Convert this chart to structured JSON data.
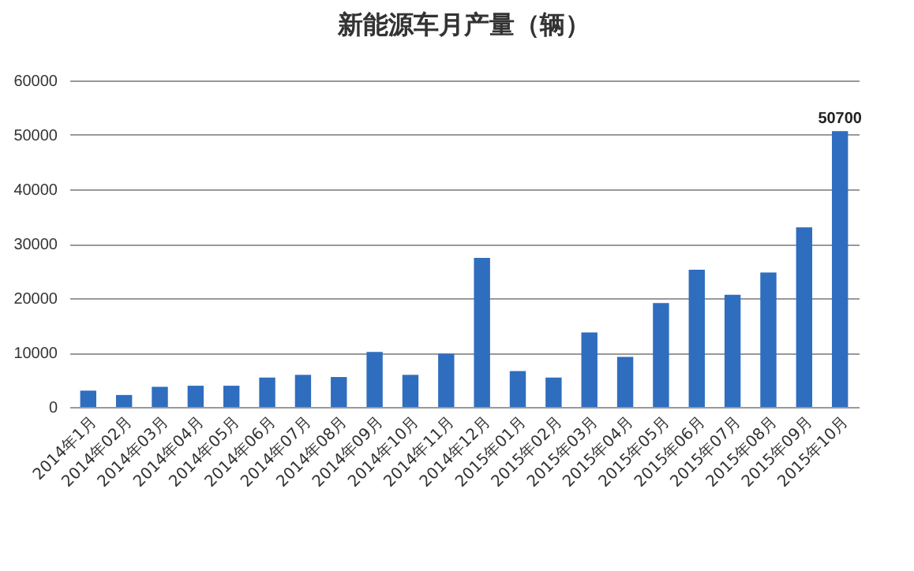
{
  "chart_data": {
    "type": "bar",
    "title": "新能源车月产量（辆）",
    "categories": [
      "2014年1月",
      "2014年02月",
      "2014年03月",
      "2014年04月",
      "2014年05月",
      "2014年06月",
      "2014年07月",
      "2014年08月",
      "2014年09月",
      "2014年10月",
      "2014年11月",
      "2014年12月",
      "2015年01月",
      "2015年02月",
      "2015年03月",
      "2015年04月",
      "2015年05月",
      "2015年06月",
      "2015年07月",
      "2015年08月",
      "2015年09月",
      "2015年10月"
    ],
    "values": [
      3000,
      2200,
      3700,
      3900,
      3900,
      5400,
      5900,
      5500,
      10100,
      5900,
      9800,
      27400,
      6600,
      5400,
      13700,
      9200,
      19100,
      25200,
      20600,
      24700,
      33000,
      50700
    ],
    "value_labels": [
      null,
      null,
      null,
      null,
      null,
      null,
      null,
      null,
      null,
      null,
      null,
      null,
      null,
      null,
      null,
      null,
      null,
      null,
      null,
      null,
      null,
      "50700"
    ],
    "color": "#2f6dbf",
    "ylim": [
      0,
      60000
    ],
    "yticks": [
      0,
      10000,
      20000,
      30000,
      40000,
      50000,
      60000
    ],
    "grid": "y"
  }
}
